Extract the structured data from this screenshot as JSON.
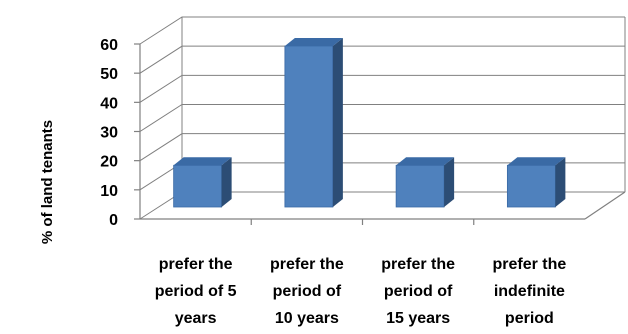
{
  "chart_data": {
    "type": "bar",
    "three_d": true,
    "title": "",
    "xlabel": "",
    "ylabel": "% of land tenants",
    "ylim": [
      0,
      60
    ],
    "yticks": [
      0,
      10,
      20,
      30,
      40,
      50,
      60
    ],
    "grid": true,
    "legend": "none",
    "bar_color": "#4f81bd",
    "bar_side_color": "#2c4d75",
    "bar_top_color": "#3a6aa5",
    "categories": [
      [
        "prefer the",
        "period of 5",
        "years"
      ],
      [
        "prefer the",
        "period of",
        "10 years"
      ],
      [
        "prefer the",
        "period of",
        "15 years"
      ],
      [
        "prefer the",
        "indefinite",
        "period"
      ]
    ],
    "values": [
      14.3,
      55.2,
      14.3,
      14.3
    ]
  }
}
